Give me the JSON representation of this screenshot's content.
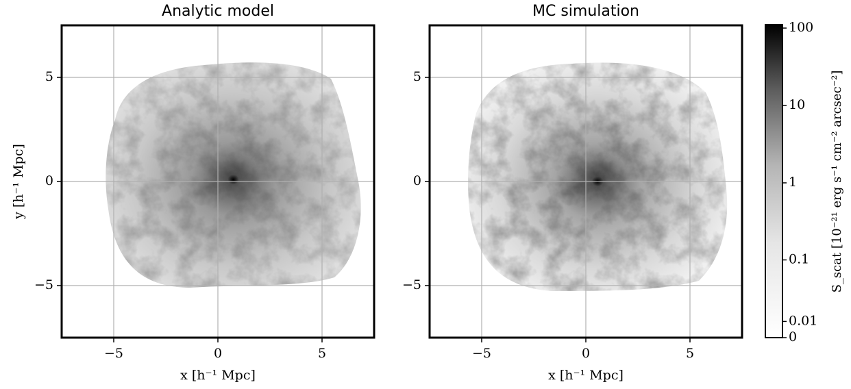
{
  "chart_data": [
    {
      "type": "heatmap",
      "title": "Analytic model",
      "xlabel": "x [h⁻¹ Mpc]",
      "ylabel": "y [h⁻¹ Mpc]",
      "xlim": [
        -7.5,
        7.5
      ],
      "ylim": [
        -7.5,
        7.5
      ],
      "xticks": [
        {
          "value": -5,
          "label": "−5"
        },
        0,
        5
      ],
      "yticks": [
        {
          "value": -5,
          "label": "−5"
        },
        0,
        5
      ],
      "grid": true
    },
    {
      "type": "heatmap",
      "title": "MC simulation",
      "xlabel": "x [h⁻¹ Mpc]",
      "xlim": [
        -7.5,
        7.5
      ],
      "ylim": [
        -7.5,
        7.5
      ],
      "xticks": [
        {
          "value": -5,
          "label": "−5"
        },
        0,
        5
      ],
      "yticks": [
        {
          "value": -5,
          "label": "−5"
        },
        0,
        5
      ],
      "grid": true
    }
  ],
  "colorbar": {
    "label": "S_scat [10⁻²¹ erg s⁻¹ cm⁻² arcsec⁻²]",
    "scale": "asinh",
    "lim": [
      0,
      100
    ],
    "ticks": [
      0,
      0.01,
      0.1,
      1,
      10,
      100
    ]
  }
}
